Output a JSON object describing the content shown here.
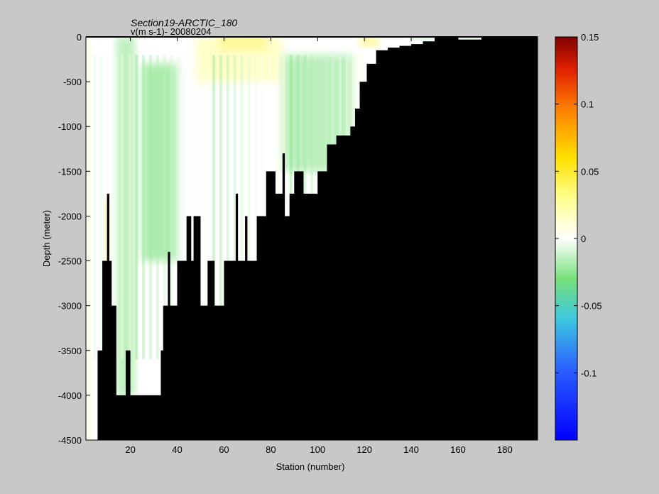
{
  "chart_data": {
    "type": "heatmap",
    "title": "Section19-ARCTIC_180",
    "subtitle": "v(m s-1)- 20080204",
    "xlabel": "Station (number)",
    "ylabel": "Depth (meter)",
    "xlim": [
      1,
      194
    ],
    "ylim": [
      -4500,
      0
    ],
    "x_ticks": [
      20,
      40,
      60,
      80,
      100,
      120,
      140,
      160,
      180
    ],
    "y_ticks": [
      0,
      -500,
      -1000,
      -1500,
      -2000,
      -2500,
      -3000,
      -3500,
      -4000,
      -4500
    ],
    "colorbar": {
      "range": [
        -0.15,
        0.15
      ],
      "ticks": [
        0.15,
        0.1,
        0.05,
        0,
        -0.05,
        -0.1
      ],
      "tick_labels": [
        "0.15",
        "0.1",
        "0.05",
        "0",
        "-0.05",
        "-0.1"
      ],
      "colormap": "jet-white-centered"
    },
    "bathymetry_depth_by_station": [
      [
        1,
        -4500
      ],
      [
        6,
        -3500
      ],
      [
        8,
        -2500
      ],
      [
        10,
        -1750
      ],
      [
        11,
        -2500
      ],
      [
        12,
        -3000
      ],
      [
        14,
        -4000
      ],
      [
        18,
        -3500
      ],
      [
        20,
        -4000
      ],
      [
        33,
        -3500
      ],
      [
        34,
        -3000
      ],
      [
        36,
        -2400
      ],
      [
        37,
        -3000
      ],
      [
        40,
        -2500
      ],
      [
        44,
        -2000
      ],
      [
        46,
        -2500
      ],
      [
        47,
        -2000
      ],
      [
        50,
        -3000
      ],
      [
        53,
        -2500
      ],
      [
        56,
        -3000
      ],
      [
        60,
        -2500
      ],
      [
        63,
        -2500
      ],
      [
        65,
        -1750
      ],
      [
        66,
        -2500
      ],
      [
        69,
        -2000
      ],
      [
        70,
        -2500
      ],
      [
        74,
        -2000
      ],
      [
        78,
        -1500
      ],
      [
        82,
        -1750
      ],
      [
        85,
        -1300
      ],
      [
        86,
        -2000
      ],
      [
        88,
        -1750
      ],
      [
        90,
        -1500
      ],
      [
        94,
        -1750
      ],
      [
        100,
        -1500
      ],
      [
        104,
        -1200
      ],
      [
        108,
        -1100
      ],
      [
        114,
        -1000
      ],
      [
        116,
        -800
      ],
      [
        118,
        -500
      ],
      [
        121,
        -300
      ],
      [
        125,
        -150
      ],
      [
        130,
        -120
      ],
      [
        135,
        -100
      ],
      [
        140,
        -80
      ],
      [
        145,
        -50
      ],
      [
        150,
        0
      ],
      [
        160,
        -30
      ],
      [
        170,
        0
      ],
      [
        194,
        0
      ]
    ],
    "velocity_features": [
      {
        "station_range": [
          58,
          78
        ],
        "depth_range": [
          0,
          -150
        ],
        "value": 0.06
      },
      {
        "station_range": [
          48,
          85
        ],
        "depth_range": [
          0,
          -500
        ],
        "value": 0.02
      },
      {
        "station_range": [
          118,
          126
        ],
        "depth_range": [
          0,
          -100
        ],
        "value": 0.04
      },
      {
        "station_range": [
          9,
          11
        ],
        "depth_range": [
          -1800,
          -2500
        ],
        "value": 0.03
      },
      {
        "station_range": [
          1,
          3
        ],
        "depth_range": [
          0,
          -4500
        ],
        "value": 0.015
      },
      {
        "station_range": [
          14,
          22
        ],
        "depth_range": [
          0,
          -4000
        ],
        "value": -0.02
      },
      {
        "station_range": [
          25,
          40
        ],
        "depth_range": [
          -300,
          -2500
        ],
        "value": -0.025
      },
      {
        "station_range": [
          85,
          115
        ],
        "depth_range": [
          -200,
          -1500
        ],
        "value": -0.02
      },
      {
        "station_range": [
          140,
          170
        ],
        "depth_range": [
          0,
          -30
        ],
        "value": -0.03
      }
    ]
  }
}
